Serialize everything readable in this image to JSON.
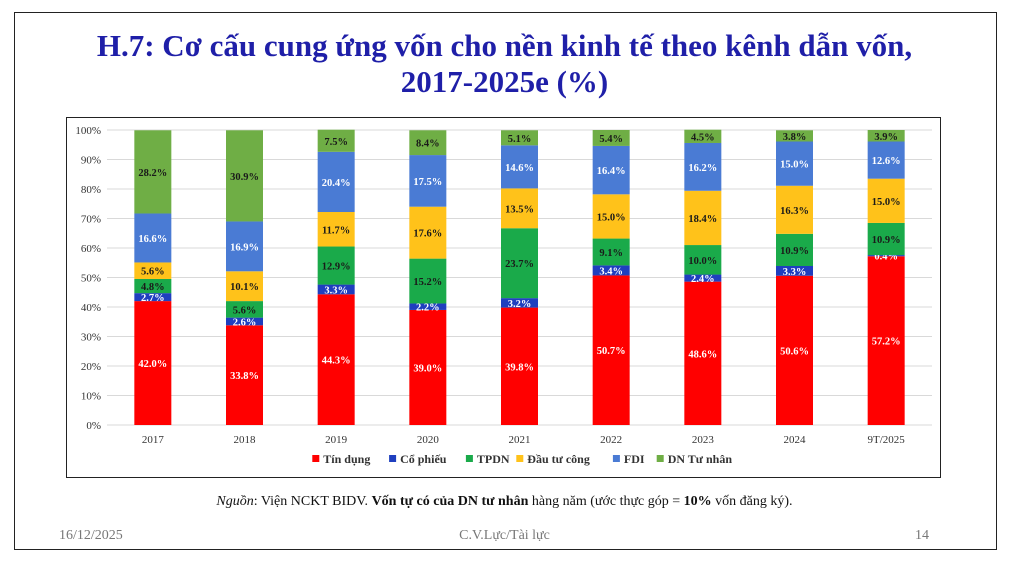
{
  "title": {
    "line1": "H.7: Cơ cấu cung ứng vốn cho nền kinh tế theo kênh dẫn vốn,",
    "line2": "2017-2025e (%)"
  },
  "source": {
    "prefix": "Nguồn",
    "text1": ": Viện NCKT BIDV. ",
    "bold": "Vốn tự có của DN tư nhân",
    "text2": " hàng năm (ước thực góp = ",
    "bold2": "10%",
    "text3": " vốn đăng ký)."
  },
  "footer": {
    "date": "16/12/2025",
    "author": "C.V.Lực/Tài lực",
    "page": "14"
  },
  "chart_data": {
    "type": "bar",
    "stacked": true,
    "percent": true,
    "categories": [
      "2017",
      "2018",
      "2019",
      "2020",
      "2021",
      "2022",
      "2023",
      "2024",
      "9T/2025"
    ],
    "yticks": [
      "0%",
      "10%",
      "20%",
      "30%",
      "40%",
      "50%",
      "60%",
      "70%",
      "80%",
      "90%",
      "100%"
    ],
    "ylim": [
      0,
      100
    ],
    "legend_position": "bottom",
    "series": [
      {
        "name": "Tín dụng",
        "color": "#ff0000",
        "label_color": "#ffffff",
        "values": [
          42.0,
          33.8,
          44.3,
          39.0,
          39.8,
          50.7,
          48.6,
          50.6,
          57.2
        ],
        "labels": [
          "42.0%",
          "33.8%",
          "44.3%",
          "39.0%",
          "39.8%",
          "50.7%",
          "48.6%",
          "50.6%",
          "57.2%"
        ]
      },
      {
        "name": "Cổ phiếu",
        "color": "#1f3fbf",
        "label_color": "#ffffff",
        "values": [
          2.7,
          2.6,
          3.3,
          2.2,
          3.2,
          3.4,
          2.4,
          3.3,
          0.4
        ],
        "labels": [
          "2.7%",
          "2.6%",
          "3.3%",
          "2.2%",
          "3.2%",
          "3.4%",
          "2.4%",
          "3.3%",
          "0.4%"
        ]
      },
      {
        "name": "TPDN",
        "color": "#1aaa4a",
        "label_color": "#1a1a1a",
        "values": [
          4.8,
          5.6,
          12.9,
          15.2,
          23.7,
          9.1,
          10.0,
          10.9,
          10.9
        ],
        "labels": [
          "4.8%",
          "5.6%",
          "12.9%",
          "15.2%",
          "23.7%",
          "9.1%",
          "10.0%",
          "10.9%",
          "10.9%"
        ]
      },
      {
        "name": "Đầu tư công",
        "color": "#ffc21a",
        "label_color": "#1a1a1a",
        "values": [
          5.6,
          10.1,
          11.7,
          17.6,
          13.5,
          15.0,
          18.4,
          16.3,
          15.0
        ],
        "labels": [
          "5.6%",
          "10.1%",
          "11.7%",
          "17.6%",
          "13.5%",
          "15.0%",
          "18.4%",
          "16.3%",
          "15.0%"
        ]
      },
      {
        "name": "FDI",
        "color": "#4a7bd4",
        "label_color": "#ffffff",
        "values": [
          16.6,
          16.9,
          20.4,
          17.5,
          14.6,
          16.4,
          16.2,
          15.0,
          12.6
        ],
        "labels": [
          "16.6%",
          "16.9%",
          "20.4%",
          "17.5%",
          "14.6%",
          "16.4%",
          "16.2%",
          "15.0%",
          "12.6%"
        ]
      },
      {
        "name": "DN Tư nhân",
        "color": "#6fae45",
        "label_color": "#1a1a1a",
        "values": [
          28.2,
          30.9,
          7.5,
          8.4,
          5.1,
          5.4,
          4.5,
          3.8,
          3.9
        ],
        "labels": [
          "28.2%",
          "30.9%",
          "7.5%",
          "8.4%",
          "5.1%",
          "5.4%",
          "4.5%",
          "3.8%",
          "3.9%"
        ]
      }
    ]
  }
}
